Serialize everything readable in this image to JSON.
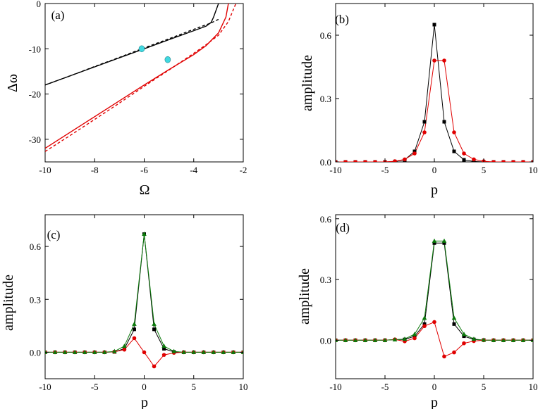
{
  "chart_data": [
    {
      "type": "line",
      "panel_label": "(a)",
      "xlabel": "Ω",
      "ylabel": "Δω",
      "xlim": [
        -10,
        -2
      ],
      "ylim": [
        -35,
        0
      ],
      "xticks": [
        -10,
        -8,
        -6,
        -4,
        -2
      ],
      "yticks": [
        0,
        -10,
        -20,
        -30
      ],
      "grid": false,
      "series": [
        {
          "color": "#000000",
          "dashed": false,
          "x": [
            -10,
            -9,
            -8,
            -7,
            -6,
            -5,
            -4,
            -3.5,
            -3.3,
            -3.2,
            -3.1,
            -3.0
          ],
          "y": [
            -18.0,
            -16.0,
            -14.0,
            -12.0,
            -10.0,
            -8.0,
            -6.0,
            -5.0,
            -4.2,
            -3.0,
            -1.5,
            0
          ]
        },
        {
          "color": "#000000",
          "dashed": true,
          "x": [
            -10,
            -9,
            -8,
            -7,
            -6,
            -5,
            -4,
            -3.3,
            -3.0
          ],
          "y": [
            -18.0,
            -16.0,
            -13.9,
            -11.9,
            -9.8,
            -7.8,
            -5.7,
            -4.3,
            -3.5
          ]
        },
        {
          "color": "#e00000",
          "dashed": false,
          "x": [
            -10,
            -9,
            -8,
            -7,
            -6,
            -5,
            -4,
            -3.5,
            -3.0,
            -2.7,
            -2.6
          ],
          "y": [
            -32.0,
            -28.5,
            -25.0,
            -21.5,
            -18.0,
            -14.6,
            -11.3,
            -9.3,
            -6.5,
            -3.0,
            0
          ]
        },
        {
          "color": "#e00000",
          "dashed": true,
          "x": [
            -10,
            -9,
            -8,
            -7,
            -6,
            -5,
            -4,
            -3.5,
            -3.0,
            -2.6,
            -2.3
          ],
          "y": [
            -32.7,
            -29.2,
            -25.6,
            -22.0,
            -18.3,
            -14.7,
            -11.0,
            -9.1,
            -7.0,
            -4.0,
            0
          ]
        }
      ],
      "markers": [
        {
          "color": "#40d8e0",
          "x": -6.1,
          "y": -10.0
        },
        {
          "color": "#40d8e0",
          "x": -5.05,
          "y": -12.4
        }
      ]
    },
    {
      "type": "line",
      "panel_label": "(b)",
      "xlabel": "p",
      "ylabel": "amplitude",
      "xlim": [
        -10,
        10
      ],
      "ylim": [
        0,
        0.75
      ],
      "xticks": [
        -10,
        -5,
        0,
        5,
        10
      ],
      "yticks": [
        0.0,
        0.3,
        0.6
      ],
      "ytick_labels": [
        "0.0",
        "0.3",
        "0.6"
      ],
      "grid": false,
      "x": [
        -10,
        -9,
        -8,
        -7,
        -6,
        -5,
        -4,
        -3,
        -2,
        -1,
        0,
        1,
        2,
        3,
        4,
        5,
        6,
        7,
        8,
        9,
        10
      ],
      "series": [
        {
          "color": "#000000",
          "marker": "square",
          "values": [
            0,
            0,
            0,
            0,
            0,
            0,
            0.002,
            0.01,
            0.05,
            0.19,
            0.65,
            0.19,
            0.05,
            0.01,
            0.002,
            0,
            0,
            0,
            0,
            0,
            0
          ]
        },
        {
          "color": "#e00000",
          "marker": "circle",
          "values": [
            0,
            0,
            0,
            0,
            0,
            0,
            0.003,
            0.012,
            0.04,
            0.14,
            0.48,
            0.48,
            0.14,
            0.04,
            0.012,
            0.003,
            0,
            0,
            0,
            0,
            0
          ]
        }
      ]
    },
    {
      "type": "line",
      "panel_label": "(c)",
      "xlabel": "p",
      "ylabel": "amplitude",
      "xlim": [
        -10,
        10
      ],
      "ylim": [
        -0.15,
        0.78
      ],
      "xticks": [
        -10,
        -5,
        0,
        5,
        10
      ],
      "yticks": [
        0.0,
        0.3,
        0.6
      ],
      "ytick_labels": [
        "0.0",
        "0.3",
        "0.6"
      ],
      "grid": false,
      "x": [
        -10,
        -9,
        -8,
        -7,
        -6,
        -5,
        -4,
        -3,
        -2,
        -1,
        0,
        1,
        2,
        3,
        4,
        5,
        6,
        7,
        8,
        9,
        10
      ],
      "series": [
        {
          "color": "#000000",
          "marker": "square",
          "values": [
            0,
            0,
            0,
            0,
            0,
            0,
            0,
            0.002,
            0.02,
            0.13,
            0.67,
            0.13,
            0.02,
            0.002,
            0,
            0,
            0,
            0,
            0,
            0,
            0
          ]
        },
        {
          "color": "#e00000",
          "marker": "circle",
          "values": [
            0,
            0,
            0,
            0,
            0,
            0,
            0,
            0.003,
            0.015,
            0.08,
            0.0,
            -0.08,
            -0.015,
            -0.003,
            0,
            0,
            0,
            0,
            0,
            0,
            0
          ]
        },
        {
          "color": "#0a7a0a",
          "marker": "triangle",
          "values": [
            0,
            0,
            0,
            0,
            0,
            0,
            0,
            0.005,
            0.035,
            0.16,
            0.67,
            0.16,
            0.035,
            0.005,
            0,
            0,
            0,
            0,
            0,
            0,
            0
          ]
        }
      ]
    },
    {
      "type": "line",
      "panel_label": "(d)",
      "xlabel": "p",
      "ylabel": "amplitude",
      "xlim": [
        -10,
        10
      ],
      "ylim": [
        -0.19,
        0.62
      ],
      "xticks": [
        -10,
        -5,
        0,
        5,
        10
      ],
      "yticks": [
        0.0,
        0.3,
        0.6
      ],
      "ytick_labels": [
        "0.0",
        "0.3",
        "0.6"
      ],
      "grid": false,
      "x": [
        -10,
        -9,
        -8,
        -7,
        -6,
        -5,
        -4,
        -3,
        -2,
        -1,
        0,
        1,
        2,
        3,
        4,
        5,
        6,
        7,
        8,
        9,
        10
      ],
      "series": [
        {
          "color": "#000000",
          "marker": "square",
          "values": [
            0,
            0,
            0,
            0,
            0,
            0,
            0.003,
            0.004,
            0.02,
            0.08,
            0.48,
            0.48,
            0.08,
            0.02,
            0.004,
            0.001,
            0,
            0,
            0,
            0,
            0
          ]
        },
        {
          "color": "#e00000",
          "marker": "circle",
          "values": [
            0,
            0,
            0,
            0,
            0,
            0,
            0.004,
            -0.005,
            0.01,
            0.07,
            0.09,
            -0.08,
            -0.06,
            -0.015,
            -0.004,
            0,
            0,
            0,
            0,
            0,
            0
          ]
        },
        {
          "color": "#0a7a0a",
          "marker": "triangle",
          "values": [
            0,
            0,
            0,
            0,
            0,
            0,
            0.003,
            0.006,
            0.03,
            0.11,
            0.49,
            0.49,
            0.11,
            0.03,
            0.006,
            0.001,
            0,
            0,
            0,
            0,
            0
          ]
        }
      ]
    }
  ]
}
